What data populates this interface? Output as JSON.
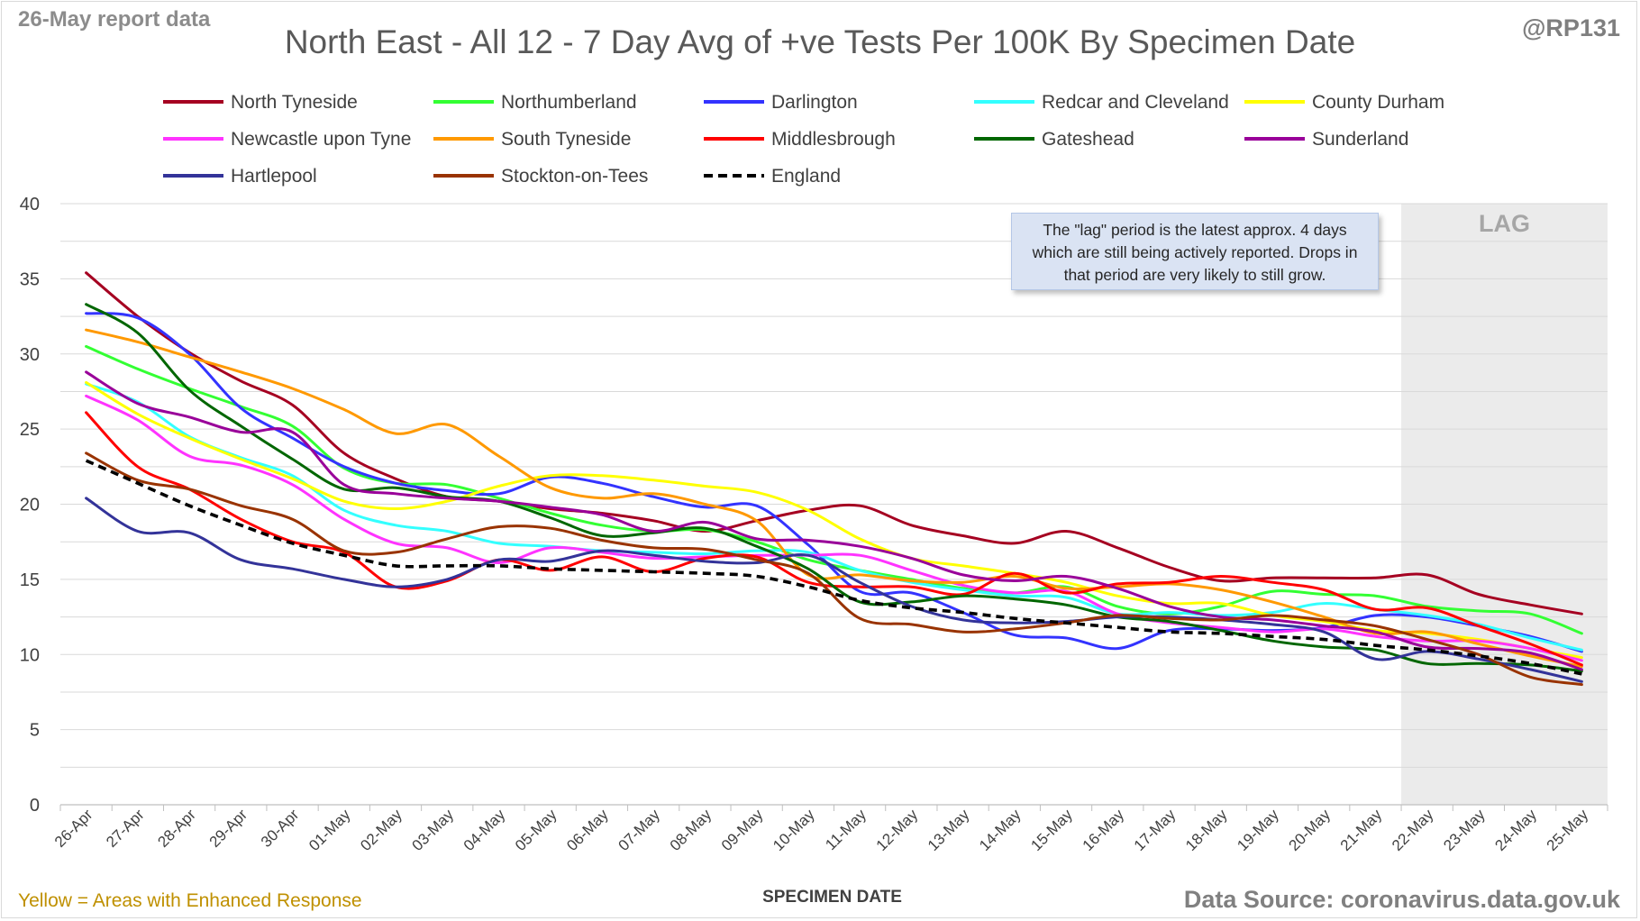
{
  "header": {
    "report_date": "26-May report data",
    "handle": "@RP131",
    "title": "North East - All 12 - 7 Day Avg of +ve Tests Per 100K By Specimen Date"
  },
  "footer": {
    "footnote": "Yellow = Areas with Enhanced Response",
    "source": "Data Source: coronavirus.data.gov.uk"
  },
  "note": "The \"lag\" period is the latest approx. 4 days which are still being actively reported. Drops in that period are very likely to still grow.",
  "lag_label": "LAG",
  "colors": {
    "grid": "#d9d9d9",
    "lag_shade": "#ebebeb",
    "note_bg": "#dae3f3"
  },
  "chart_data": {
    "type": "line",
    "title": "North East - All 12 - 7 Day Avg of +ve Tests Per 100K By Specimen Date",
    "xlabel": "SPECIMEN DATE",
    "ylabel": "",
    "ylim": [
      0,
      40
    ],
    "yticks": [
      0,
      5,
      10,
      15,
      20,
      25,
      30,
      35,
      40
    ],
    "grid": true,
    "legend_position": "top",
    "lag_period": [
      "22-May",
      "25-May"
    ],
    "categories": [
      "26-Apr",
      "27-Apr",
      "28-Apr",
      "29-Apr",
      "30-Apr",
      "01-May",
      "02-May",
      "03-May",
      "04-May",
      "05-May",
      "06-May",
      "07-May",
      "08-May",
      "09-May",
      "10-May",
      "11-May",
      "12-May",
      "13-May",
      "14-May",
      "15-May",
      "16-May",
      "17-May",
      "18-May",
      "19-May",
      "20-May",
      "21-May",
      "22-May",
      "23-May",
      "24-May",
      "25-May"
    ],
    "series": [
      {
        "name": "North Tyneside",
        "color": "#a50021",
        "dashed": false,
        "values": [
          35.4,
          32.5,
          30.1,
          28.2,
          26.6,
          23.4,
          21.7,
          20.5,
          20.2,
          19.7,
          19.4,
          18.9,
          18.2,
          18.9,
          19.6,
          19.9,
          18.6,
          17.9,
          17.4,
          18.2,
          17.1,
          15.8,
          14.9,
          15.1,
          15.1,
          15.1,
          15.3,
          14.0,
          13.3,
          12.7
        ]
      },
      {
        "name": "Northumberland",
        "color": "#33ff33",
        "dashed": false,
        "values": [
          30.5,
          29.0,
          27.7,
          26.5,
          25.2,
          22.4,
          21.4,
          21.3,
          20.4,
          19.4,
          18.6,
          18.2,
          18.3,
          17.5,
          16.3,
          15.6,
          15.0,
          14.4,
          14.1,
          14.5,
          13.2,
          12.7,
          13.2,
          14.2,
          14.0,
          13.9,
          13.2,
          12.9,
          12.7,
          11.4
        ]
      },
      {
        "name": "Darlington",
        "color": "#3333ff",
        "dashed": false,
        "values": [
          32.7,
          32.4,
          30.0,
          26.4,
          24.4,
          22.5,
          21.4,
          20.9,
          20.7,
          21.8,
          21.4,
          20.5,
          19.8,
          19.9,
          17.3,
          14.2,
          14.1,
          12.8,
          11.3,
          11.1,
          10.4,
          11.6,
          11.7,
          11.6,
          11.8,
          12.6,
          12.5,
          11.9,
          11.2,
          10.2
        ]
      },
      {
        "name": "Redcar and Cleveland",
        "color": "#33ffff",
        "dashed": false,
        "values": [
          28.0,
          26.8,
          24.5,
          23.1,
          21.9,
          19.6,
          18.6,
          18.2,
          17.4,
          17.2,
          16.9,
          16.8,
          16.7,
          16.9,
          16.8,
          15.6,
          14.8,
          14.3,
          13.9,
          13.8,
          12.7,
          12.8,
          12.6,
          12.8,
          13.4,
          13.0,
          12.6,
          12.0,
          11.1,
          10.3
        ]
      },
      {
        "name": "County Durham",
        "color": "#ffff00",
        "dashed": false,
        "values": [
          28.1,
          26.0,
          24.4,
          23.0,
          21.7,
          20.2,
          19.7,
          20.2,
          21.2,
          21.9,
          21.9,
          21.6,
          21.2,
          20.8,
          19.6,
          17.7,
          16.4,
          15.9,
          15.4,
          14.8,
          13.9,
          13.4,
          13.4,
          12.6,
          12.2,
          11.6,
          11.4,
          11.0,
          10.4,
          9.8
        ]
      },
      {
        "name": "Newcastle upon Tyne",
        "color": "#ff33ff",
        "dashed": false,
        "values": [
          27.2,
          25.6,
          23.2,
          22.6,
          21.3,
          19.0,
          17.4,
          17.1,
          16.1,
          17.1,
          16.8,
          16.4,
          16.5,
          16.6,
          16.6,
          16.6,
          15.6,
          14.6,
          14.1,
          14.2,
          12.7,
          12.1,
          11.8,
          11.5,
          11.7,
          11.2,
          10.9,
          10.9,
          10.4,
          9.6
        ]
      },
      {
        "name": "South Tyneside",
        "color": "#ff9900",
        "dashed": false,
        "values": [
          31.6,
          30.8,
          29.8,
          28.8,
          27.7,
          26.3,
          24.7,
          25.3,
          23.2,
          21.1,
          20.4,
          20.7,
          20.0,
          18.9,
          15.3,
          15.3,
          14.9,
          14.8,
          15.2,
          14.4,
          14.5,
          14.7,
          14.3,
          13.5,
          12.5,
          11.4,
          11.5,
          10.7,
          9.9,
          9.2
        ]
      },
      {
        "name": "Middlesbrough",
        "color": "#ff0000",
        "dashed": false,
        "values": [
          26.1,
          22.5,
          21.0,
          19.0,
          17.5,
          16.8,
          14.5,
          14.9,
          16.3,
          15.6,
          16.5,
          15.5,
          16.4,
          16.5,
          14.8,
          14.5,
          14.5,
          14.0,
          15.4,
          14.1,
          14.7,
          14.8,
          15.2,
          14.8,
          14.3,
          13.0,
          13.1,
          11.9,
          10.7,
          9.3
        ]
      },
      {
        "name": "Gateshead",
        "color": "#006600",
        "dashed": false,
        "values": [
          33.3,
          31.4,
          27.6,
          25.2,
          23.0,
          21.0,
          21.1,
          20.5,
          20.2,
          19.1,
          17.9,
          18.1,
          18.4,
          17.2,
          15.7,
          13.5,
          13.5,
          13.9,
          13.7,
          13.3,
          12.5,
          12.2,
          11.6,
          10.9,
          10.5,
          10.3,
          9.4,
          9.4,
          9.3,
          8.9
        ]
      },
      {
        "name": "Sunderland",
        "color": "#990099",
        "dashed": false,
        "values": [
          28.8,
          26.7,
          25.8,
          24.8,
          24.8,
          21.3,
          20.7,
          20.4,
          20.2,
          19.8,
          19.3,
          18.2,
          18.8,
          17.7,
          17.6,
          17.2,
          16.4,
          15.3,
          14.9,
          15.2,
          14.4,
          13.2,
          12.5,
          12.3,
          11.9,
          11.5,
          10.5,
          10.4,
          10.1,
          9.0
        ]
      },
      {
        "name": "Hartlepool",
        "color": "#333399",
        "dashed": false,
        "values": [
          20.4,
          18.2,
          18.1,
          16.3,
          15.7,
          15.0,
          14.5,
          15.0,
          16.3,
          16.2,
          16.9,
          16.6,
          16.2,
          16.1,
          16.6,
          14.8,
          13.2,
          12.3,
          12.1,
          12.2,
          12.5,
          12.5,
          12.3,
          12.0,
          11.5,
          9.7,
          10.2,
          9.7,
          9.0,
          8.2
        ]
      },
      {
        "name": "Stockton-on-Tees",
        "color": "#993300",
        "dashed": false,
        "values": [
          23.4,
          21.6,
          21.0,
          19.9,
          19.0,
          16.9,
          16.8,
          17.7,
          18.5,
          18.4,
          17.6,
          17.1,
          17.0,
          16.3,
          15.4,
          12.4,
          12.0,
          11.5,
          11.7,
          12.1,
          12.6,
          12.4,
          12.3,
          12.6,
          12.3,
          11.9,
          11.0,
          10.0,
          8.5,
          8.0
        ]
      },
      {
        "name": "England",
        "color": "#000000",
        "dashed": true,
        "values": [
          22.9,
          21.4,
          19.9,
          18.6,
          17.4,
          16.6,
          15.9,
          15.9,
          15.9,
          15.7,
          15.6,
          15.5,
          15.4,
          15.2,
          14.5,
          13.6,
          13.1,
          12.8,
          12.4,
          12.1,
          11.8,
          11.5,
          11.4,
          11.2,
          11.0,
          10.6,
          10.3,
          9.9,
          9.4,
          8.7
        ]
      }
    ]
  }
}
